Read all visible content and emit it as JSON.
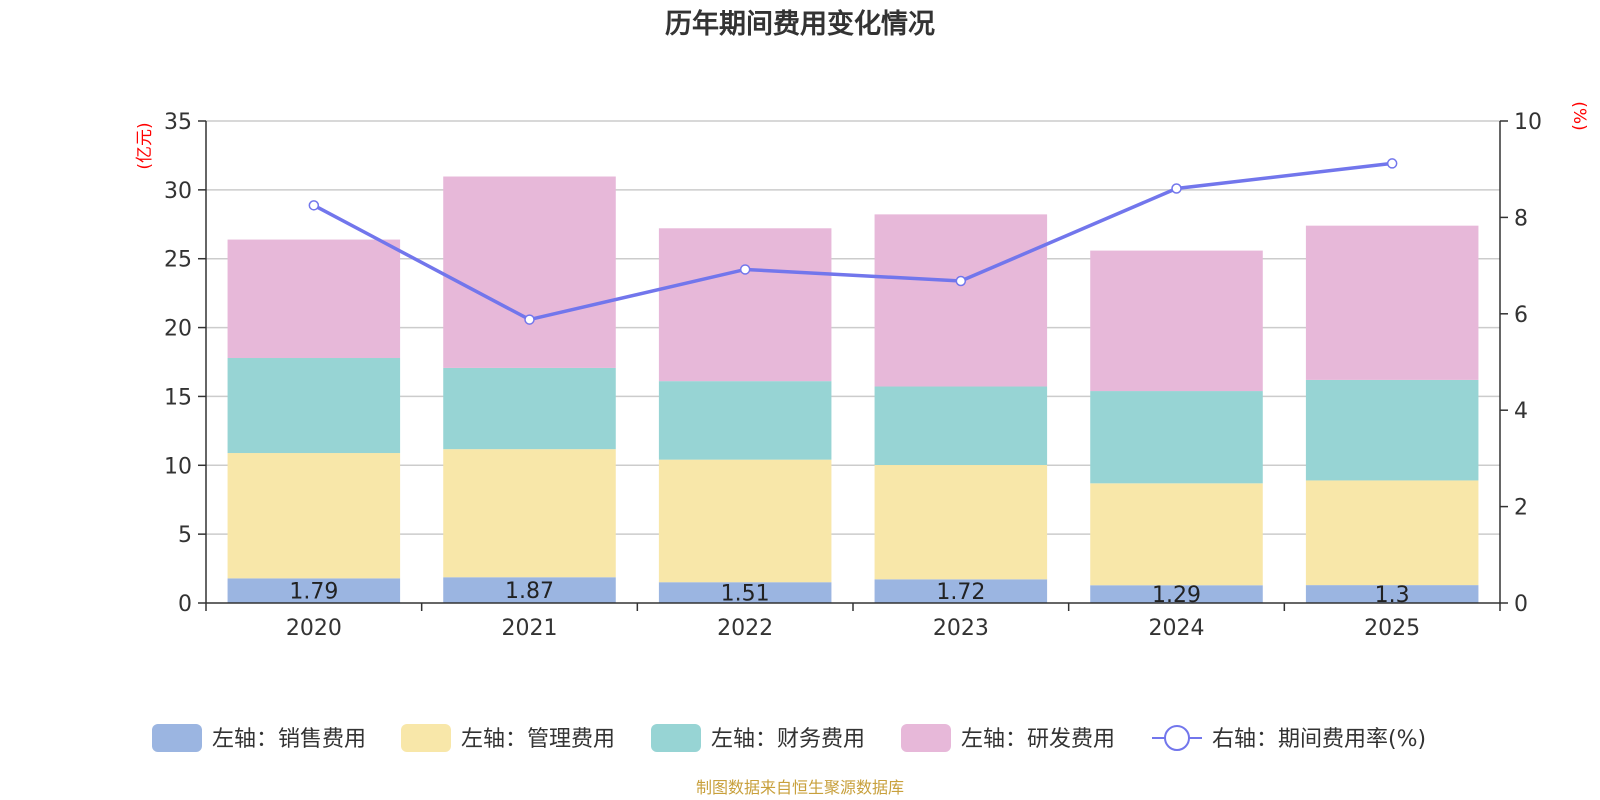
{
  "chart_data": {
    "type": "bar",
    "stacked": true,
    "title": "历年期间费用变化情况",
    "categories": [
      "2020",
      "2021",
      "2022",
      "2023",
      "2024",
      "2025"
    ],
    "left_axis": {
      "unit": "(亿元)",
      "min": 0,
      "max": 35,
      "ticks": [
        "0",
        "5",
        "10",
        "15",
        "20",
        "25",
        "30",
        "35"
      ]
    },
    "right_axis": {
      "unit": "(%)",
      "min": 0,
      "max": 10,
      "ticks": [
        "0",
        "2",
        "4",
        "6",
        "8",
        "10"
      ]
    },
    "series": [
      {
        "name": "左轴：销售费用",
        "axis": "left",
        "color": "#9bb5e1",
        "values": [
          1.79,
          1.87,
          1.51,
          1.72,
          1.29,
          1.3
        ],
        "labels": [
          "1.79",
          "1.87",
          "1.51",
          "1.72",
          "1.29",
          "1.3"
        ]
      },
      {
        "name": "左轴：管理费用",
        "axis": "left",
        "color": "#f8e7a9",
        "values": [
          9.1,
          9.3,
          8.9,
          8.3,
          7.4,
          7.6
        ]
      },
      {
        "name": "左轴：财务费用",
        "axis": "left",
        "color": "#97d4d4",
        "values": [
          6.9,
          5.9,
          5.7,
          5.7,
          6.7,
          7.3
        ]
      },
      {
        "name": "左轴：研发费用",
        "axis": "left",
        "color": "#e7b8d9",
        "values": [
          8.6,
          13.9,
          11.1,
          12.5,
          10.2,
          11.2
        ]
      },
      {
        "name": "右轴：期间费用率(%)",
        "axis": "right",
        "type": "line",
        "color": "#7276ec",
        "values": [
          8.25,
          5.88,
          6.92,
          6.68,
          8.6,
          9.12
        ]
      }
    ],
    "grid": true,
    "legend_position": "bottom"
  },
  "footer": {
    "source": "制图数据来自恒生聚源数据库"
  }
}
